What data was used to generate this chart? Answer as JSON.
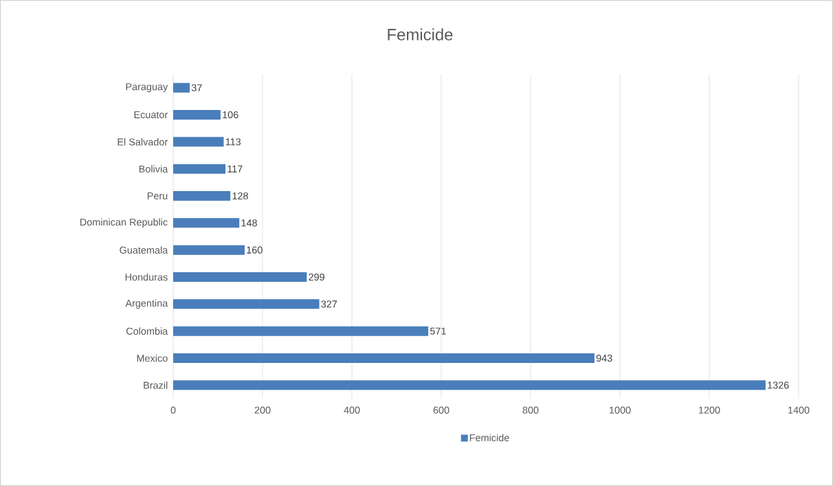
{
  "chart_data": {
    "type": "bar",
    "orientation": "horizontal",
    "title": "Femicide",
    "categories": [
      "Paraguay",
      "Ecuator",
      "El Salvador",
      "Bolivia",
      "Peru",
      "Dominican Republic",
      "Guatemala",
      "Honduras",
      "Argentina",
      "Colombia",
      "Mexico",
      "Brazil"
    ],
    "series": [
      {
        "name": "Femicide",
        "color": "#4a7ebb",
        "values": [
          37,
          106,
          113,
          117,
          128,
          148,
          160,
          299,
          327,
          571,
          943,
          1326
        ]
      }
    ],
    "xlim": [
      0,
      1400
    ],
    "xticks": [
      0,
      200,
      400,
      600,
      800,
      1000,
      1200,
      1400
    ],
    "grid": "x",
    "legend": "bottom",
    "data_labels": true
  }
}
